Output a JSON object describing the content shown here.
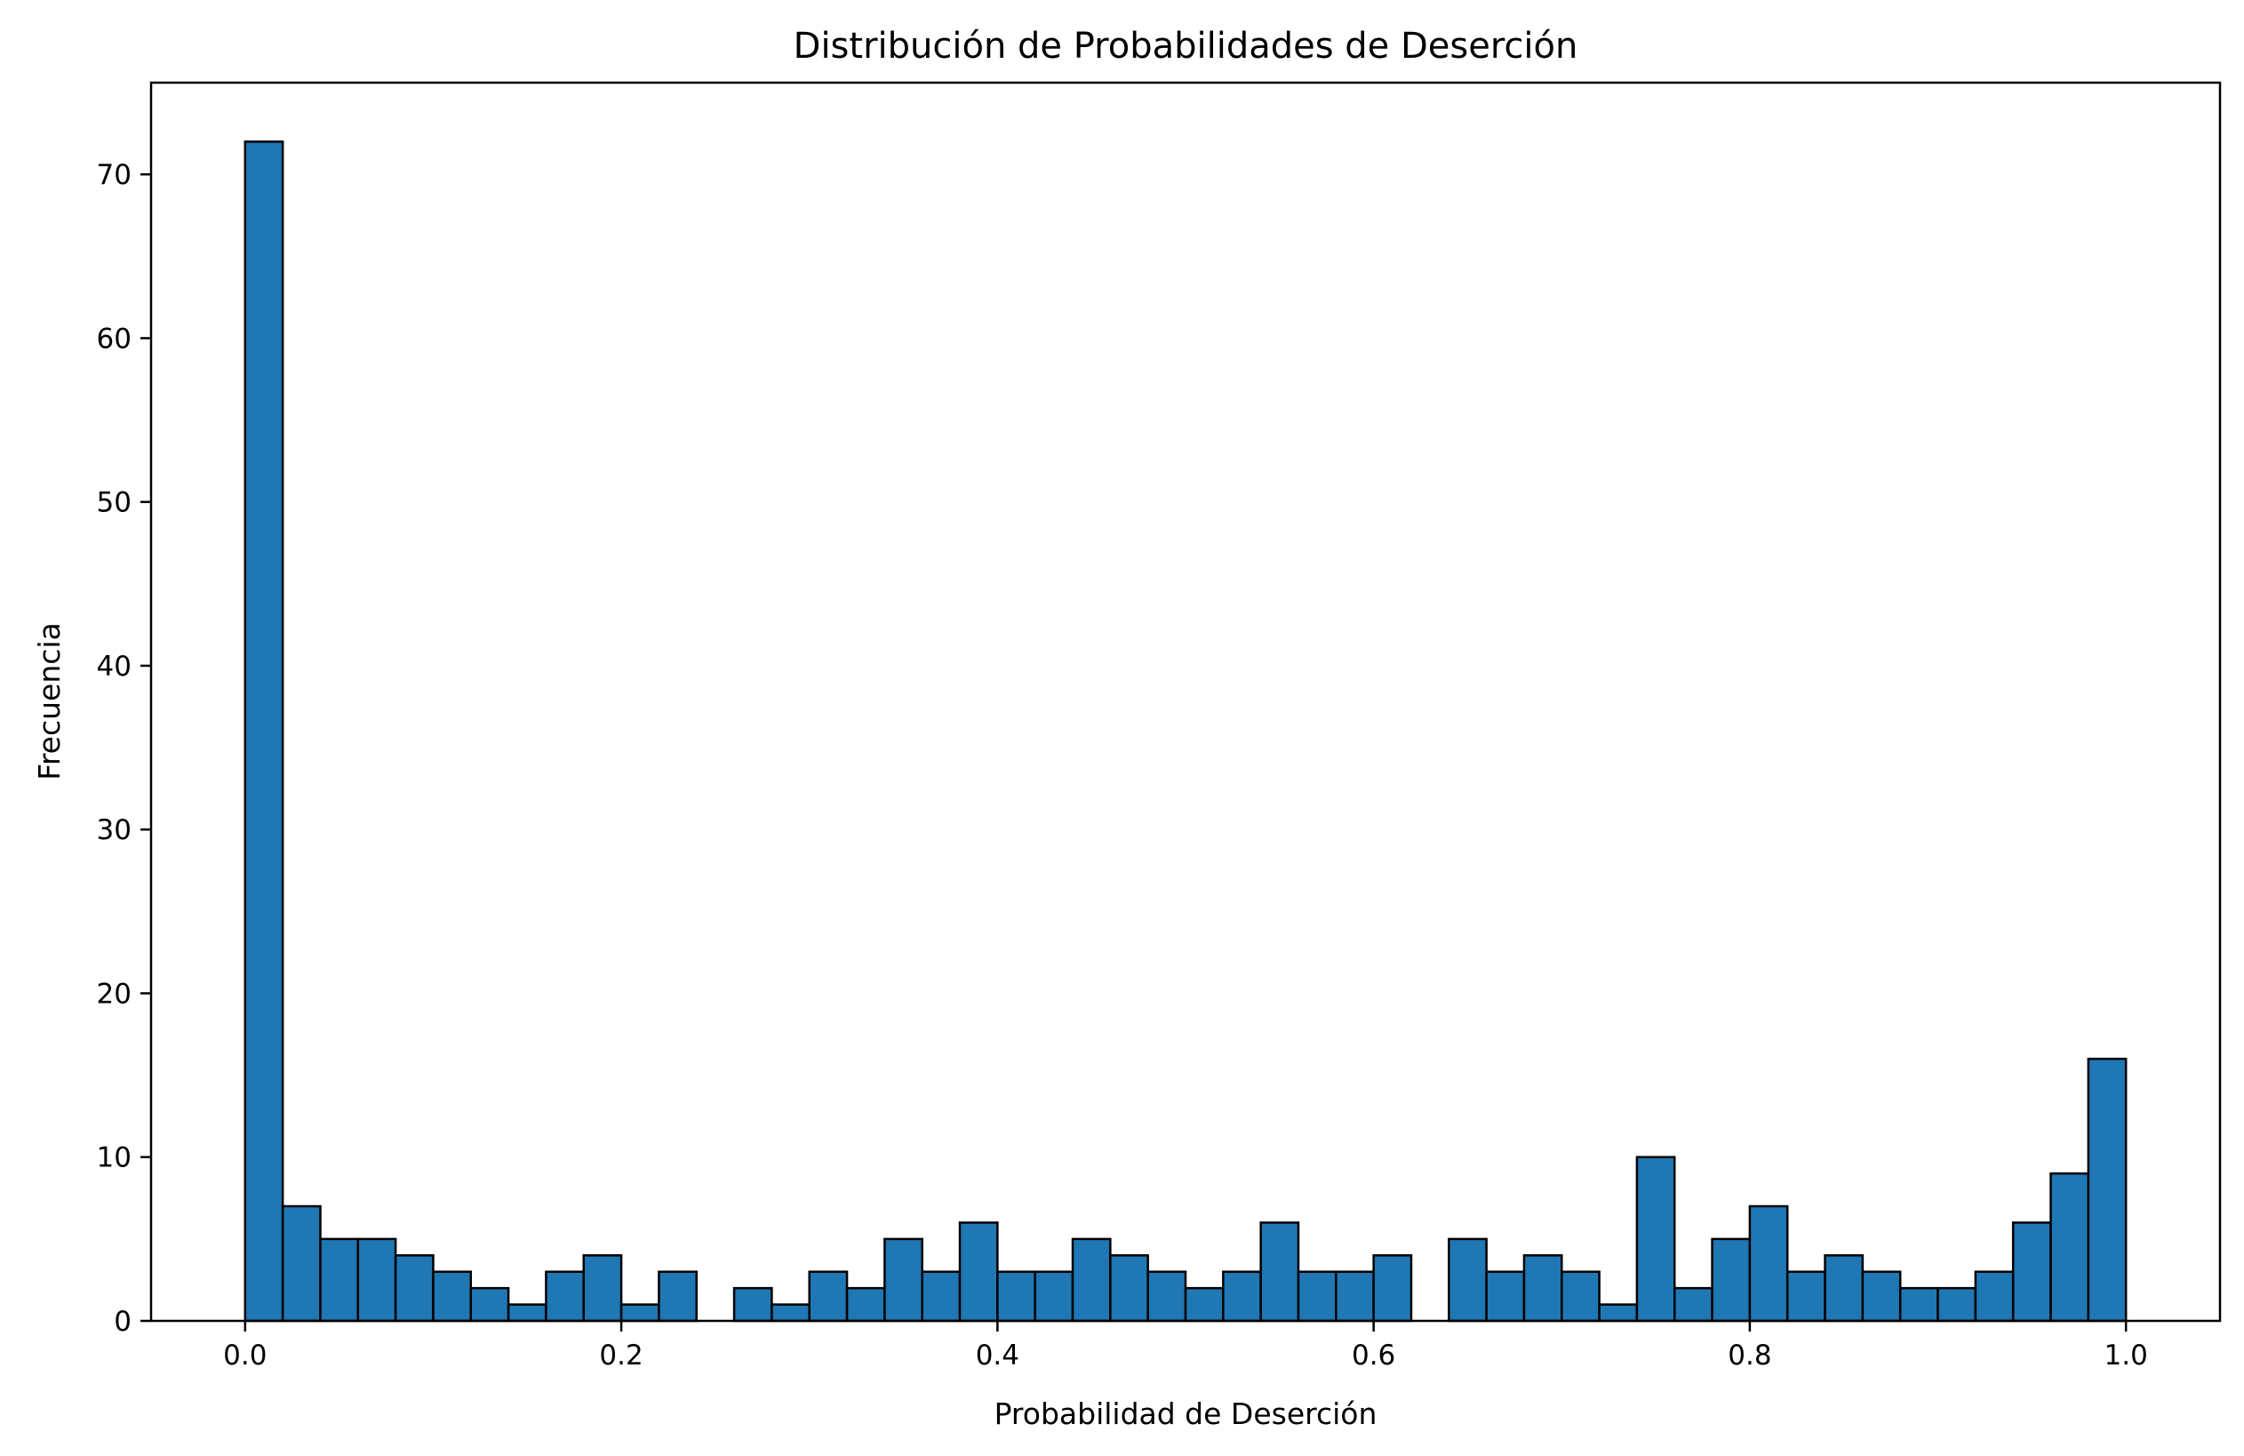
{
  "chart_data": {
    "type": "bar",
    "title": "Distribución de Probabilidades de Deserción",
    "xlabel": "Probabilidad de Deserción",
    "ylabel": "Frecuencia",
    "xlim": [
      -0.05,
      1.05
    ],
    "ylim": [
      0,
      75.6
    ],
    "bin_range": [
      0.0,
      1.0
    ],
    "values": [
      72,
      7,
      5,
      5,
      4,
      3,
      2,
      1,
      3,
      4,
      1,
      3,
      0,
      2,
      1,
      3,
      2,
      5,
      3,
      6,
      3,
      3,
      5,
      4,
      3,
      2,
      3,
      6,
      3,
      3,
      4,
      0,
      5,
      3,
      4,
      3,
      1,
      10,
      2,
      5,
      7,
      3,
      4,
      3,
      2,
      2,
      3,
      6,
      9,
      16
    ],
    "xticks": [
      0.0,
      0.2,
      0.4,
      0.6,
      0.8,
      1.0
    ],
    "xtick_labels": [
      "0.0",
      "0.2",
      "0.4",
      "0.6",
      "0.8",
      "1.0"
    ],
    "yticks": [
      0,
      10,
      20,
      30,
      40,
      50,
      60,
      70
    ],
    "ytick_labels": [
      "0",
      "10",
      "20",
      "30",
      "40",
      "50",
      "60",
      "70"
    ],
    "grid": false,
    "bar_color": "#1f77b4",
    "edge_color": "#000000"
  }
}
